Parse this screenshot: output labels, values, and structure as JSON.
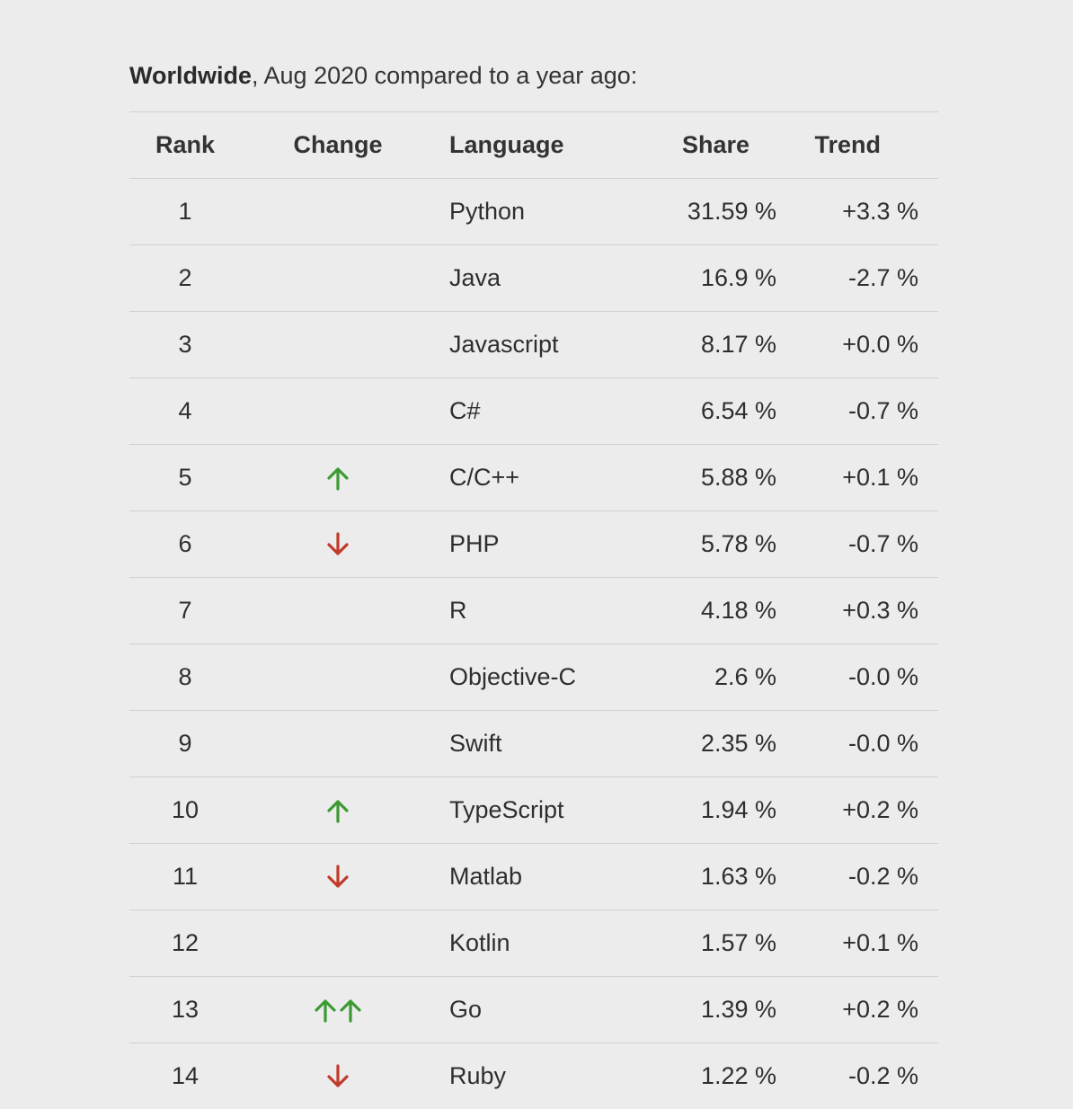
{
  "intro": {
    "bold": "Worldwide",
    "rest": ", Aug 2020 compared to a year ago:"
  },
  "headers": {
    "rank": "Rank",
    "change": "Change",
    "language": "Language",
    "share": "Share",
    "trend": "Trend"
  },
  "colors": {
    "up": "#3c9a32",
    "down": "#c23a2a"
  },
  "rows": [
    {
      "rank": "1",
      "change": "none",
      "language": "Python",
      "share": "31.59 %",
      "trend": "+3.3 %"
    },
    {
      "rank": "2",
      "change": "none",
      "language": "Java",
      "share": "16.9 %",
      "trend": "-2.7 %"
    },
    {
      "rank": "3",
      "change": "none",
      "language": "Javascript",
      "share": "8.17 %",
      "trend": "+0.0 %"
    },
    {
      "rank": "4",
      "change": "none",
      "language": "C#",
      "share": "6.54 %",
      "trend": "-0.7 %"
    },
    {
      "rank": "5",
      "change": "up",
      "language": "C/C++",
      "share": "5.88 %",
      "trend": "+0.1 %"
    },
    {
      "rank": "6",
      "change": "down",
      "language": "PHP",
      "share": "5.78 %",
      "trend": "-0.7 %"
    },
    {
      "rank": "7",
      "change": "none",
      "language": "R",
      "share": "4.18 %",
      "trend": "+0.3 %"
    },
    {
      "rank": "8",
      "change": "none",
      "language": "Objective-C",
      "share": "2.6 %",
      "trend": "-0.0 %"
    },
    {
      "rank": "9",
      "change": "none",
      "language": "Swift",
      "share": "2.35 %",
      "trend": "-0.0 %"
    },
    {
      "rank": "10",
      "change": "up",
      "language": "TypeScript",
      "share": "1.94 %",
      "trend": "+0.2 %"
    },
    {
      "rank": "11",
      "change": "down",
      "language": "Matlab",
      "share": "1.63 %",
      "trend": "-0.2 %"
    },
    {
      "rank": "12",
      "change": "none",
      "language": "Kotlin",
      "share": "1.57 %",
      "trend": "+0.1 %"
    },
    {
      "rank": "13",
      "change": "up2",
      "language": "Go",
      "share": "1.39 %",
      "trend": "+0.2 %"
    },
    {
      "rank": "14",
      "change": "down",
      "language": "Ruby",
      "share": "1.22 %",
      "trend": "-0.2 %"
    }
  ]
}
